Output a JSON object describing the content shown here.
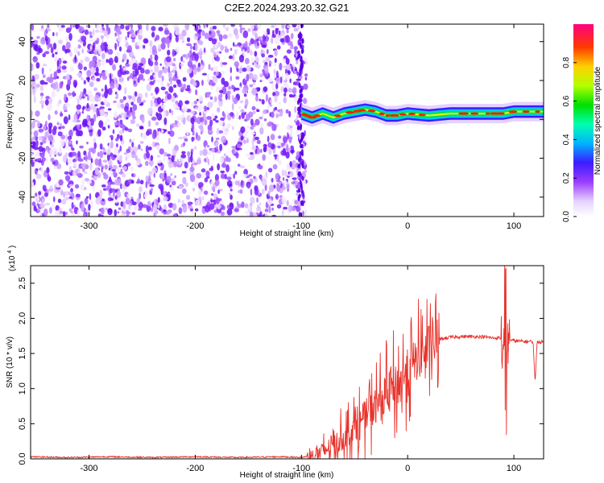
{
  "title": "C2E2.2024.293.20.32.G21",
  "chart_data": [
    {
      "type": "heatmap",
      "xlabel": "Height of straight line (km)",
      "ylabel": "Frequency (Hz)",
      "xlim": [
        -355,
        128
      ],
      "ylim": [
        -50,
        49
      ],
      "x_ticks": [
        -300,
        -200,
        -100,
        0,
        100
      ],
      "y_ticks": [
        -40,
        -20,
        0,
        20,
        40
      ],
      "noise_region_x": [
        -355,
        -100
      ],
      "signal_band": [
        {
          "x": -100,
          "y": 3
        },
        {
          "x": -90,
          "y": 1
        },
        {
          "x": -80,
          "y": 3
        },
        {
          "x": -70,
          "y": 1
        },
        {
          "x": -60,
          "y": 3
        },
        {
          "x": -50,
          "y": 4
        },
        {
          "x": -40,
          "y": 5
        },
        {
          "x": -30,
          "y": 4
        },
        {
          "x": -20,
          "y": 2
        },
        {
          "x": -10,
          "y": 2
        },
        {
          "x": 0,
          "y": 3
        },
        {
          "x": 20,
          "y": 2
        },
        {
          "x": 40,
          "y": 3
        },
        {
          "x": 60,
          "y": 3
        },
        {
          "x": 80,
          "y": 3
        },
        {
          "x": 90,
          "y": 3
        },
        {
          "x": 100,
          "y": 4
        },
        {
          "x": 128,
          "y": 4
        }
      ],
      "colorbar": {
        "label": "Normalized spectral amplitude",
        "range": [
          0.0,
          1.0
        ],
        "ticks": [
          0.0,
          0.2,
          0.4,
          0.6,
          0.8
        ]
      }
    },
    {
      "type": "line",
      "xlabel": "Height of straight line (km)",
      "ylabel": "SNR (10 * v/v)",
      "y_scale_note": "(x10",
      "y_scale_exp": "4",
      "xlim": [
        -355,
        128
      ],
      "ylim": [
        0,
        2.75
      ],
      "x_ticks": [
        -300,
        -200,
        -100,
        0,
        100
      ],
      "y_ticks": [
        "0.0",
        "0.5",
        "1.0",
        "1.5",
        "2.0",
        "2.5"
      ],
      "series": [
        {
          "color": "#e8322b",
          "points": [
            [
              -355,
              0.03
            ],
            [
              -320,
              0.02
            ],
            [
              -280,
              0.03
            ],
            [
              -240,
              0.02
            ],
            [
              -200,
              0.03
            ],
            [
              -160,
              0.02
            ],
            [
              -120,
              0.03
            ],
            [
              -100,
              0.02
            ],
            [
              -90,
              0.05
            ],
            [
              -80,
              0.1
            ],
            [
              -70,
              0.2
            ],
            [
              -60,
              0.3
            ],
            [
              -50,
              0.45
            ],
            [
              -40,
              0.6
            ],
            [
              -30,
              0.75
            ],
            [
              -20,
              0.9
            ],
            [
              -10,
              1.05
            ],
            [
              0,
              1.25
            ],
            [
              10,
              1.45
            ],
            [
              20,
              1.6
            ],
            [
              30,
              1.7
            ],
            [
              40,
              1.73
            ],
            [
              50,
              1.74
            ],
            [
              60,
              1.74
            ],
            [
              70,
              1.74
            ],
            [
              80,
              1.72
            ],
            [
              88,
              1.72
            ],
            [
              92,
              1.5
            ],
            [
              95,
              1.7
            ],
            [
              100,
              1.68
            ],
            [
              110,
              1.67
            ],
            [
              118,
              1.67
            ],
            [
              120,
              1.1
            ],
            [
              122,
              1.67
            ],
            [
              128,
              1.66
            ]
          ]
        }
      ]
    }
  ]
}
